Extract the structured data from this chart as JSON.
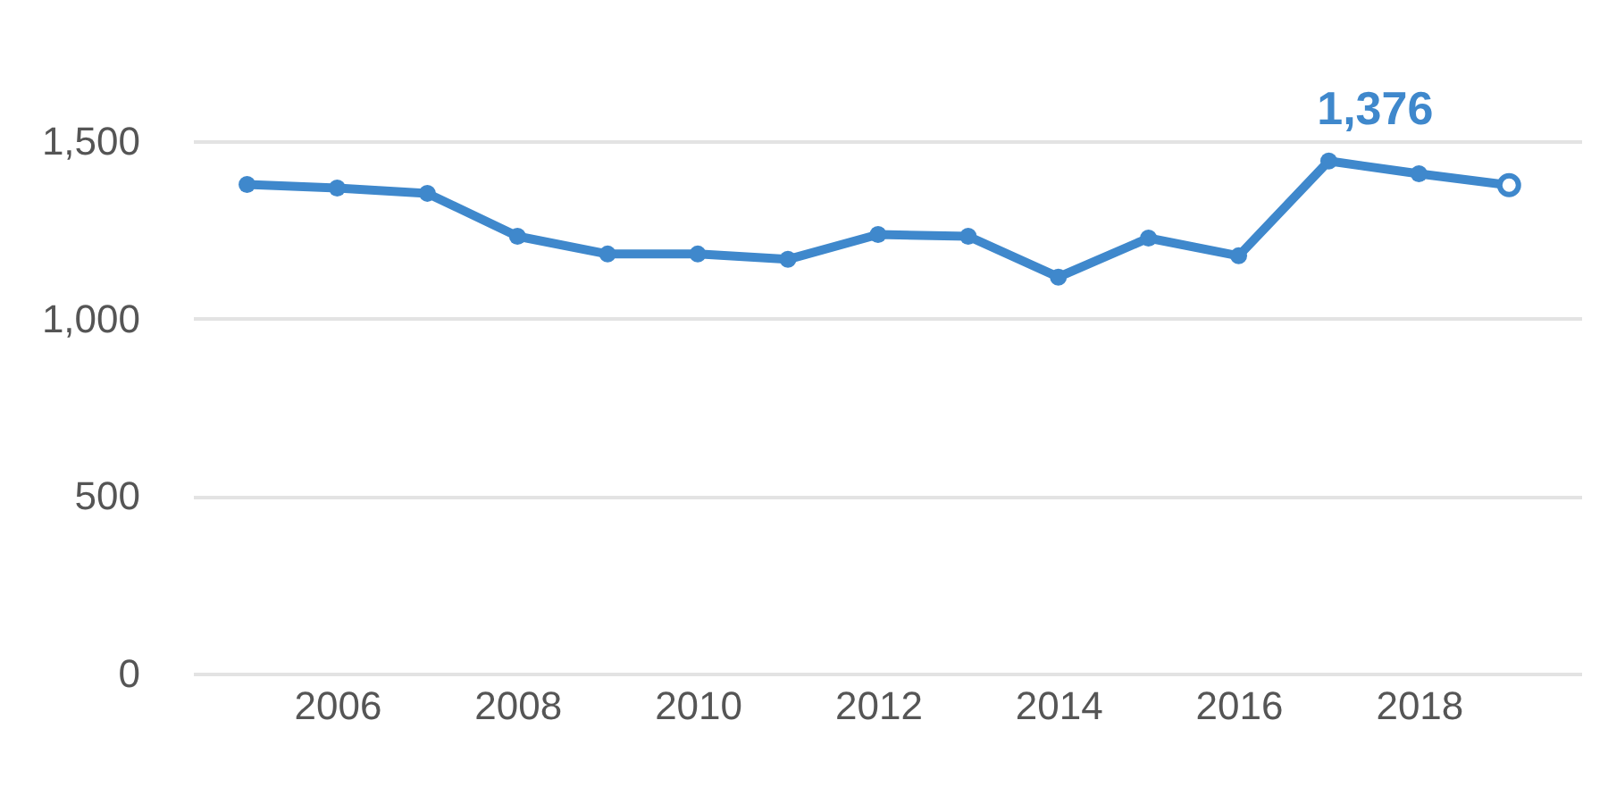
{
  "chart_data": {
    "type": "line",
    "x": [
      2005,
      2006,
      2007,
      2008,
      2009,
      2010,
      2011,
      2012,
      2013,
      2014,
      2015,
      2016,
      2017,
      2018,
      2019
    ],
    "series": [
      {
        "color": "#3f88cc",
        "values": [
          1378,
          1368,
          1353,
          1232,
          1182,
          1182,
          1167,
          1237,
          1232,
          1117,
          1227,
          1177,
          1444,
          1408,
          1376
        ]
      }
    ],
    "xlim": [
      2004.4,
      2019.8
    ],
    "xticks": [
      2006,
      2008,
      2010,
      2012,
      2014,
      2016,
      2018
    ],
    "ylim": [
      0,
      1500
    ],
    "yticks": [
      0,
      500,
      {
        "value": 1000,
        "label": "1,000"
      },
      {
        "value": 1500,
        "label": "1,500"
      }
    ],
    "grid": "y",
    "marker": "circle",
    "line_style": "solid",
    "legend": false,
    "annotations": [
      {
        "text": "1,376",
        "x": 2019,
        "y": 1376
      }
    ]
  }
}
